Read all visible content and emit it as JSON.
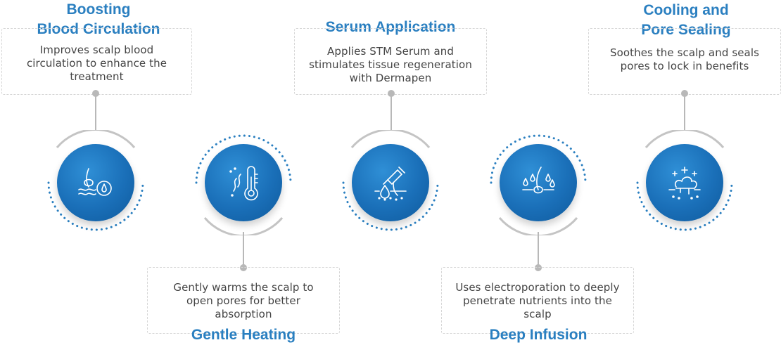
{
  "colors": {
    "title": "#2a7fc0",
    "disc": "#1a6fb8",
    "connector": "#b8b8b8",
    "dotted_ring": "#2a7fc0",
    "solid_ring": "#c4c4c4",
    "box_border": "#d6d6d6",
    "text": "#444444"
  },
  "steps": [
    {
      "title": "Boosting\nBlood Circulation",
      "description": "Improves scalp blood\ncirculation to enhance the\ntreatment",
      "icon": "hair-follicle-drop-icon"
    },
    {
      "title": "Gentle Heating",
      "description": "Gently warms the scalp to\nopen pores for better\nabsorption",
      "icon": "thermometer-heat-icon"
    },
    {
      "title": "Serum Application",
      "description": "Applies STM Serum and\nstimulates tissue regeneration\nwith Dermapen",
      "icon": "dropper-serum-icon"
    },
    {
      "title": "Deep Infusion",
      "description": "Uses electroporation to deeply\npenetrate nutrients into the\nscalp",
      "icon": "hair-infusion-drops-icon"
    },
    {
      "title": "Cooling and\nPore Sealing",
      "description": "Soothes the scalp and seals\npores to lock in benefits",
      "icon": "cooling-sparkle-icon"
    }
  ]
}
